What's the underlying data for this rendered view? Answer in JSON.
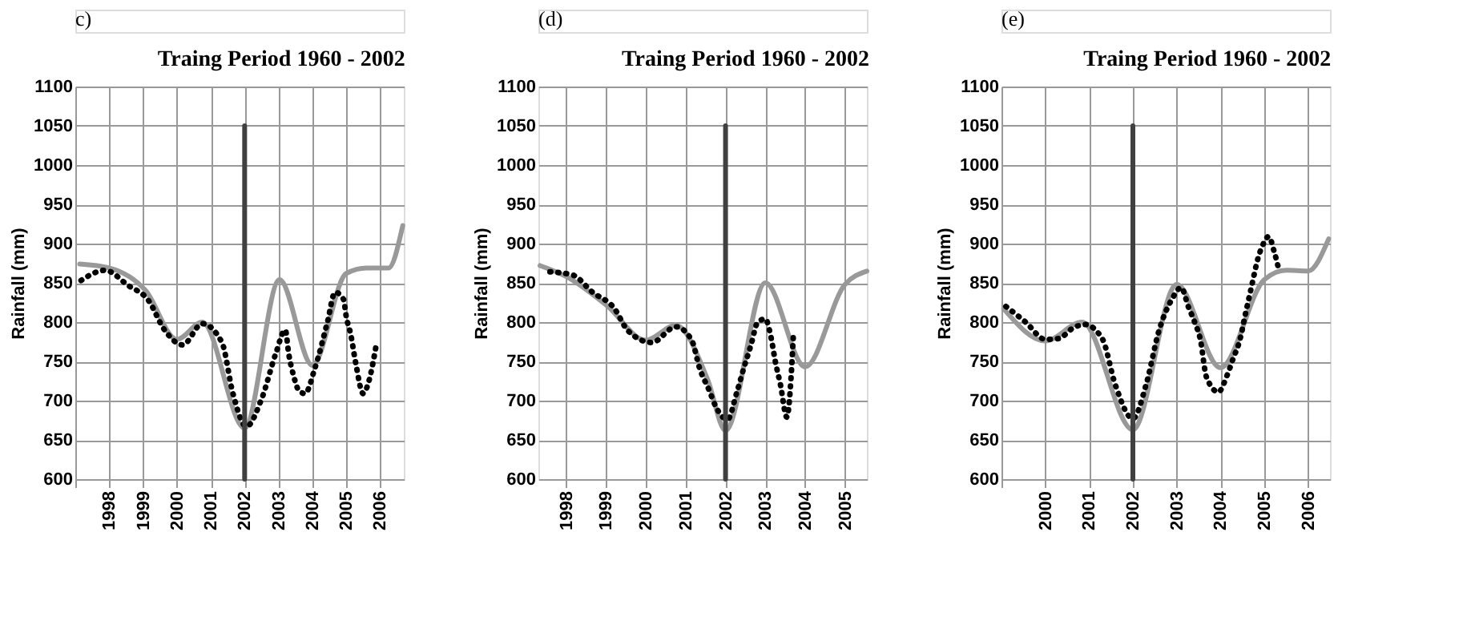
{
  "chart_data": [
    {
      "type": "line",
      "title": "Traing Period 1960 - 2002",
      "ylabel": "Rainfall (mm)",
      "annotations": [
        "c)"
      ],
      "xlim": [
        1997,
        2006.7
      ],
      "xticks": [
        {
          "value": 1997,
          "label": null
        },
        1998,
        1999,
        2000,
        2001,
        2002,
        2003,
        2004,
        2005,
        2006
      ],
      "ylim": [
        600,
        1100
      ],
      "yticks": [
        600,
        650,
        700,
        750,
        800,
        850,
        900,
        950,
        1000,
        1050,
        1100
      ],
      "grid": true,
      "marker": "none",
      "series": [
        {
          "color": "#999999",
          "line_style": "solid",
          "x": [
            1997.13,
            1998,
            1999.08,
            2000,
            2000.75,
            2002,
            2003.03,
            2004,
            2005,
            2005.6,
            2006.25,
            2006.67
          ],
          "values": [
            874,
            869,
            840,
            778,
            800,
            665,
            854,
            745,
            862,
            869,
            869,
            923
          ]
        },
        {
          "color": "#000000",
          "line_style": "dotted",
          "x": [
            1997.17,
            1997.88,
            1998.55,
            1999.17,
            1999.62,
            2000.17,
            2000.75,
            2001.33,
            2001.65,
            2002.05,
            2002.5,
            2002.92,
            2003.2,
            2003.3,
            2003.45,
            2003.6,
            2003.78,
            2004.08,
            2004.45,
            2004.67,
            2004.92,
            2005.0,
            2005.13,
            2005.28,
            2005.5,
            2005.67,
            2005.87
          ],
          "values": [
            853,
            866,
            847,
            827,
            791,
            771,
            798,
            774,
            710,
            667,
            702,
            760,
            790,
            760,
            731,
            713,
            709,
            742,
            801,
            838,
            829,
            807,
            785,
            748,
            709,
            725,
            767
          ]
        },
        {
          "color": "#404040",
          "line_style": "solid",
          "x": [
            2002,
            2002
          ],
          "values": [
            600,
            1050
          ]
        }
      ]
    },
    {
      "type": "line",
      "title": "Traing Period 1960 - 2002",
      "ylabel": "Rainfall (mm)",
      "annotations": [
        "(d)"
      ],
      "xlim": [
        1997.3,
        2005.55
      ],
      "xticks": [
        1998,
        1999,
        2000,
        2001,
        2002,
        2003,
        2004,
        2005
      ],
      "ylim": [
        600,
        1100
      ],
      "yticks": [
        600,
        650,
        700,
        750,
        800,
        850,
        900,
        950,
        1000,
        1050,
        1100
      ],
      "grid": true,
      "marker": "none",
      "series": [
        {
          "color": "#999999",
          "line_style": "solid",
          "x": [
            1997.34,
            1998,
            1999.02,
            2000,
            2000.75,
            2001.55,
            2002,
            2003,
            2004,
            2005,
            2005.55
          ],
          "values": [
            872,
            858,
            821,
            777,
            796,
            727,
            662,
            850,
            743,
            848,
            865
          ]
        },
        {
          "color": "#000000",
          "line_style": "dotted",
          "x": [
            1997.59,
            1998.16,
            1998.66,
            1999.2,
            1999.55,
            2000.15,
            2000.75,
            2001.15,
            2001.35,
            2001.59,
            2001.75,
            2002.05,
            2002.28,
            2002.45,
            2002.64,
            2002.81,
            2003,
            2003.14,
            2003.25,
            2003.38,
            2003.54,
            2003.65,
            2003.7
          ],
          "values": [
            864,
            860,
            838,
            818,
            789,
            774,
            794,
            777,
            741,
            713,
            693,
            676,
            710,
            740,
            771,
            800,
            804,
            781,
            750,
            720,
            679,
            733,
            780
          ]
        },
        {
          "color": "#404040",
          "line_style": "solid",
          "x": [
            2002,
            2002
          ],
          "values": [
            600,
            1050
          ]
        }
      ]
    },
    {
      "type": "line",
      "title": "Traing Period 1960 - 2002",
      "ylabel": "Rainfall (mm)",
      "annotations": [
        "(e)"
      ],
      "xlim": [
        1999,
        2006.5
      ],
      "xticks": [
        {
          "value": 1999,
          "label": null
        },
        2000,
        2001,
        2002,
        2003,
        2004,
        2005,
        2006
      ],
      "ylim": [
        600,
        1100
      ],
      "yticks": [
        600,
        650,
        700,
        750,
        800,
        850,
        900,
        950,
        1000,
        1050,
        1100
      ],
      "grid": true,
      "marker": "none",
      "series": [
        {
          "color": "#999999",
          "line_style": "solid",
          "x": [
            1999.05,
            2000,
            2000.84,
            2002,
            2003,
            2004,
            2005,
            2005.5,
            2006,
            2006.47
          ],
          "values": [
            817,
            776,
            800,
            663,
            848,
            742,
            854,
            866,
            865,
            906
          ]
        },
        {
          "color": "#000000",
          "line_style": "dotted",
          "x": [
            1999.1,
            1999.55,
            2000,
            2000.3,
            2000.65,
            2000.9,
            2001.3,
            2001.6,
            2002,
            2002.3,
            2002.6,
            2002.9,
            2003.1,
            2003.27,
            2003.41,
            2003.54,
            2003.68,
            2003.95,
            2004.15,
            2004.28,
            2004.45,
            2004.58,
            2004.72,
            2004.85,
            2004.99,
            2005.1,
            2005.23,
            2005.34
          ],
          "values": [
            820,
            800,
            778,
            779,
            793,
            797,
            779,
            720,
            677,
            720,
            790,
            830,
            844,
            819,
            800,
            778,
            730,
            711,
            732,
            752,
            779,
            813,
            848,
            880,
            901,
            909,
            889,
            865
          ]
        },
        {
          "color": "#404040",
          "line_style": "solid",
          "x": [
            2002,
            2002
          ],
          "values": [
            600,
            1050
          ]
        }
      ]
    }
  ]
}
